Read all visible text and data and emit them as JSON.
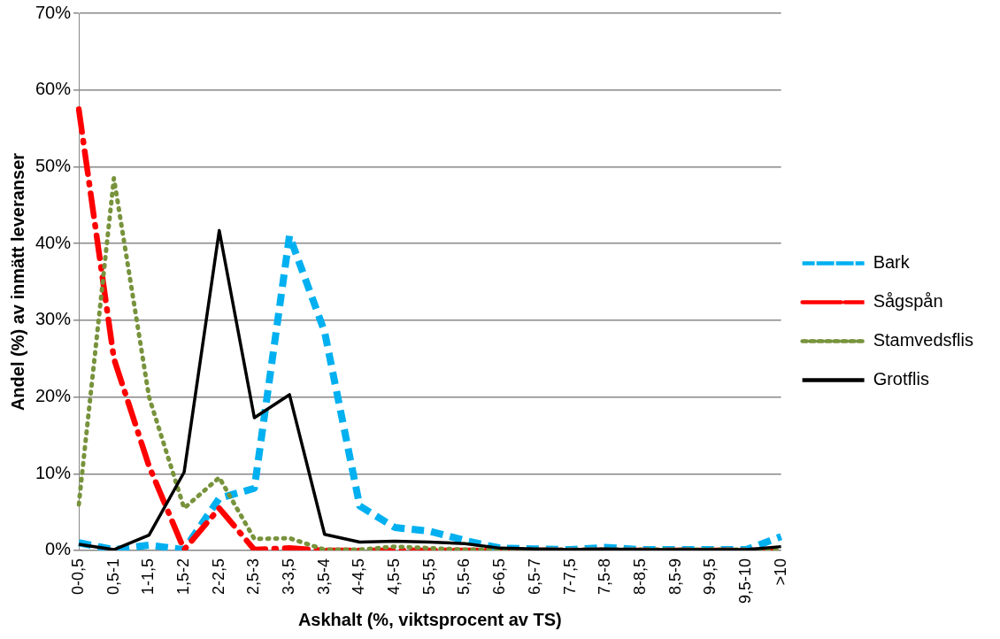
{
  "chart_data": {
    "type": "line",
    "xlabel": "Askhalt (%, viktsprocent av TS)",
    "ylabel": "Andel (%) av inmätt leveranser",
    "categories": [
      "0-0,5",
      "0,5-1",
      "1-1,5",
      "1,5-2",
      "2-2,5",
      "2,5-3",
      "3-3,5",
      "3,5-4",
      "4-4,5",
      "4,5-5",
      "5-5,5",
      "5,5-6",
      "6-6,5",
      "6,5-7",
      "7-7,5",
      "7,5-8",
      "8-8,5",
      "8,5-9",
      "9-9,5",
      "9,5-10",
      ">10"
    ],
    "series": [
      {
        "name": "Bark",
        "color": "#00b0f0",
        "line_style": "dashed",
        "values": [
          1.0,
          0.1,
          0.7,
          0.1,
          6.8,
          8.1,
          41,
          28.5,
          5.8,
          3,
          2.5,
          1.3,
          0.3,
          0.2,
          0.1,
          0.4,
          0.1,
          0.1,
          0.1,
          0.1,
          1.8
        ]
      },
      {
        "name": "Sågspån",
        "color": "#ff0000",
        "line_style": "dashdot",
        "values": [
          57.5,
          25,
          11,
          0.1,
          5.5,
          0.1,
          0.3,
          0,
          0,
          0,
          0,
          0,
          0,
          0,
          0,
          0,
          0,
          0,
          0,
          0,
          0
        ]
      },
      {
        "name": "Stamvedsflis",
        "color": "#77933c",
        "line_style": "dotted",
        "values": [
          6,
          48.5,
          20,
          5.5,
          9.5,
          1.5,
          1.6,
          0.1,
          0.1,
          0.5,
          0.3,
          0.1,
          0.1,
          0.1,
          0.1,
          0.1,
          0.1,
          0.1,
          0.1,
          0.1,
          0
        ]
      },
      {
        "name": "Grotflis",
        "color": "#000000",
        "line_style": "solid",
        "values": [
          0.8,
          0.1,
          2,
          10.2,
          41.7,
          17.3,
          20.3,
          2.1,
          1.1,
          1.2,
          1.1,
          0.9,
          0.3,
          0.2,
          0.1,
          0.2,
          0.1,
          0.1,
          0.1,
          0.1,
          0.5
        ]
      }
    ],
    "ylim": [
      0,
      70
    ],
    "yticks": [
      {
        "value": 0,
        "label": "0%"
      },
      {
        "value": 10,
        "label": "10%"
      },
      {
        "value": 20,
        "label": "20%"
      },
      {
        "value": 30,
        "label": "30%"
      },
      {
        "value": 40,
        "label": "40%"
      },
      {
        "value": 50,
        "label": "50%"
      },
      {
        "value": 60,
        "label": "60%"
      },
      {
        "value": 70,
        "label": "70%"
      }
    ],
    "grid": "y",
    "legend": "right",
    "marker": "none"
  }
}
